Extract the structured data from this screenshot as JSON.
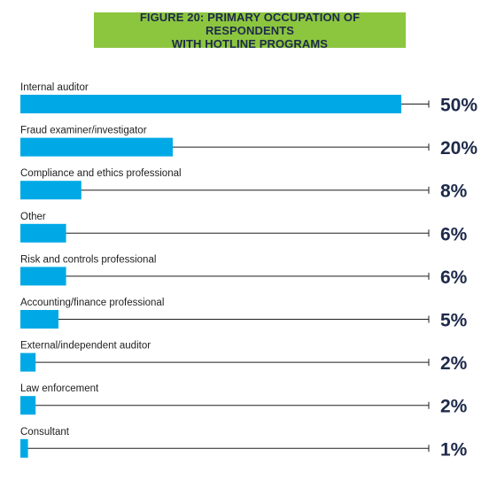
{
  "chart_data": {
    "type": "bar",
    "orientation": "horizontal",
    "title_line1": "FIGURE 20: PRIMARY OCCUPATION OF RESPONDENTS",
    "title_line2": "WITH HOTLINE PROGRAMS",
    "xlim": [
      0,
      50
    ],
    "grid": false,
    "categories": [
      "Internal auditor",
      "Fraud examiner/investigator",
      "Compliance and ethics professional",
      "Other",
      "Risk and controls professional",
      "Accounting/finance professional",
      "External/independent auditor",
      "Law enforcement",
      "Consultant"
    ],
    "values": [
      50,
      20,
      8,
      6,
      6,
      5,
      2,
      2,
      1
    ],
    "value_labels": [
      "50%",
      "20%",
      "8%",
      "6%",
      "6%",
      "5%",
      "2%",
      "2%",
      "1%"
    ],
    "bar_color": "#00a9e6",
    "line_color": "#1e1e1e",
    "title_bg_color": "#8cc63f",
    "title_text_color": "#1e2a4a"
  }
}
